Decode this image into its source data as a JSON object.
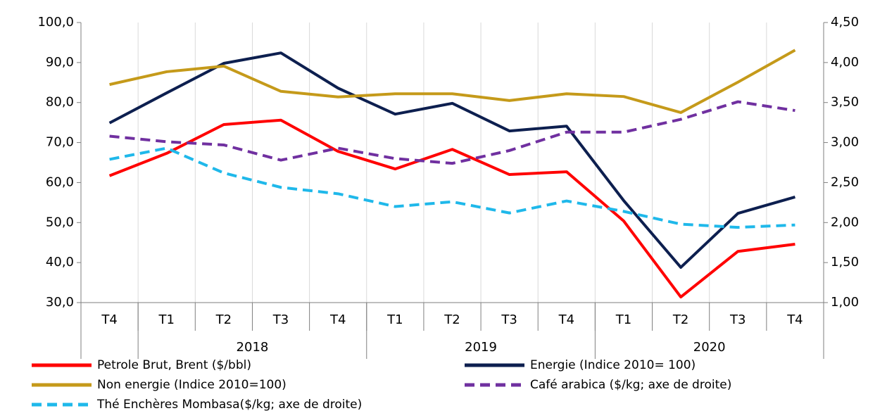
{
  "chart_data": {
    "type": "line",
    "categories": [
      "T4",
      "T1",
      "T2",
      "T3",
      "T4",
      "T1",
      "T2",
      "T3",
      "T4",
      "T1",
      "T2",
      "T3",
      "T4"
    ],
    "groups": [
      {
        "label": null,
        "count": 1
      },
      {
        "label": "2018",
        "count": 4
      },
      {
        "label": "2019",
        "count": 4
      },
      {
        "label": "2020",
        "count": 4
      }
    ],
    "ylim": [
      30,
      100
    ],
    "yticks": [
      {
        "value": 30,
        "label": "30,0"
      },
      {
        "value": 40,
        "label": "40,0"
      },
      {
        "value": 50,
        "label": "50,0"
      },
      {
        "value": 60,
        "label": "60,0"
      },
      {
        "value": 70,
        "label": "70,0"
      },
      {
        "value": 80,
        "label": "80,0"
      },
      {
        "value": 90,
        "label": "90,0"
      },
      {
        "value": 100,
        "label": "100,0"
      }
    ],
    "y2lim": [
      1,
      4.5
    ],
    "y2ticks": [
      {
        "value": 1,
        "label": "1,00"
      },
      {
        "value": 1.5,
        "label": "1,50"
      },
      {
        "value": 2,
        "label": "2,00"
      },
      {
        "value": 2.5,
        "label": "2,50"
      },
      {
        "value": 3,
        "label": "3,00"
      },
      {
        "value": 3.5,
        "label": "3,50"
      },
      {
        "value": 4,
        "label": "4,00"
      },
      {
        "value": 4.5,
        "label": "4,50"
      }
    ],
    "grid": true,
    "series": [
      {
        "name": "Petrole Brut, Brent ($/bbl)",
        "color": "#ff0000",
        "dashed": false,
        "values": [
          61.7,
          67.3,
          74.5,
          75.6,
          67.8,
          63.4,
          68.3,
          62.0,
          62.7,
          50.4,
          31.4,
          42.8,
          44.6
        ]
      },
      {
        "name": "Energie (Indice 2010= 100)",
        "color": "#0d1f4f",
        "dashed": false,
        "values": [
          74.9,
          82.4,
          89.8,
          92.4,
          83.6,
          77.1,
          79.8,
          72.9,
          74.1,
          55.5,
          38.8,
          52.3,
          56.4
        ]
      },
      {
        "name": "Non energie (Indice 2010=100)",
        "color": "#c59a1a",
        "dashed": false,
        "values": [
          84.5,
          87.7,
          89.1,
          82.8,
          81.4,
          82.2,
          82.2,
          80.5,
          82.2,
          81.5,
          77.5,
          85.1,
          93.1
        ]
      },
      {
        "name": "Café arabica ($/kg; axe de droite)",
        "color": "#7030a0",
        "dashed": true,
        "axis": "y2",
        "values": [
          3.08,
          3.01,
          2.97,
          2.78,
          2.93,
          2.8,
          2.74,
          2.9,
          3.13,
          3.13,
          3.29,
          3.51,
          3.4
        ]
      },
      {
        "name": "Thé Enchères Mombasa($/kg; axe de droite)",
        "color": "#1fb8ea",
        "dashed": true,
        "axis": "y2",
        "values": [
          2.79,
          2.93,
          2.62,
          2.44,
          2.36,
          2.2,
          2.26,
          2.12,
          2.27,
          2.14,
          1.98,
          1.94,
          1.97
        ]
      }
    ]
  }
}
